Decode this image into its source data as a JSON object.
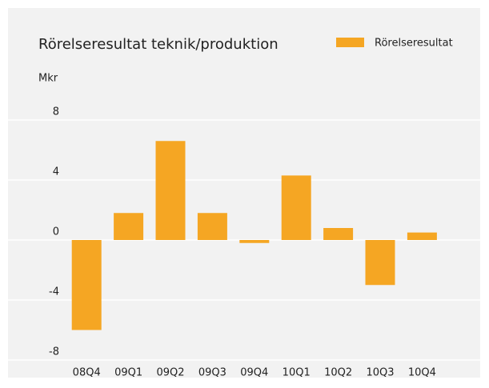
{
  "chart_data": {
    "type": "bar",
    "title": "Rörelseresultat teknik/produktion",
    "y_label": "Mkr",
    "categories": [
      "08Q4",
      "09Q1",
      "09Q2",
      "09Q3",
      "09Q4",
      "10Q1",
      "10Q2",
      "10Q3",
      "10Q4"
    ],
    "series": [
      {
        "name": "Rörelseresultat",
        "color": "#f5a623",
        "values": [
          -6,
          1.8,
          6.6,
          1.8,
          -0.2,
          4.3,
          0.8,
          -3,
          0.5
        ]
      }
    ],
    "ylim": [
      -8,
      8
    ],
    "yticks": [
      -8,
      -4,
      0,
      4,
      8
    ],
    "grid": true,
    "legend": "top-right"
  }
}
